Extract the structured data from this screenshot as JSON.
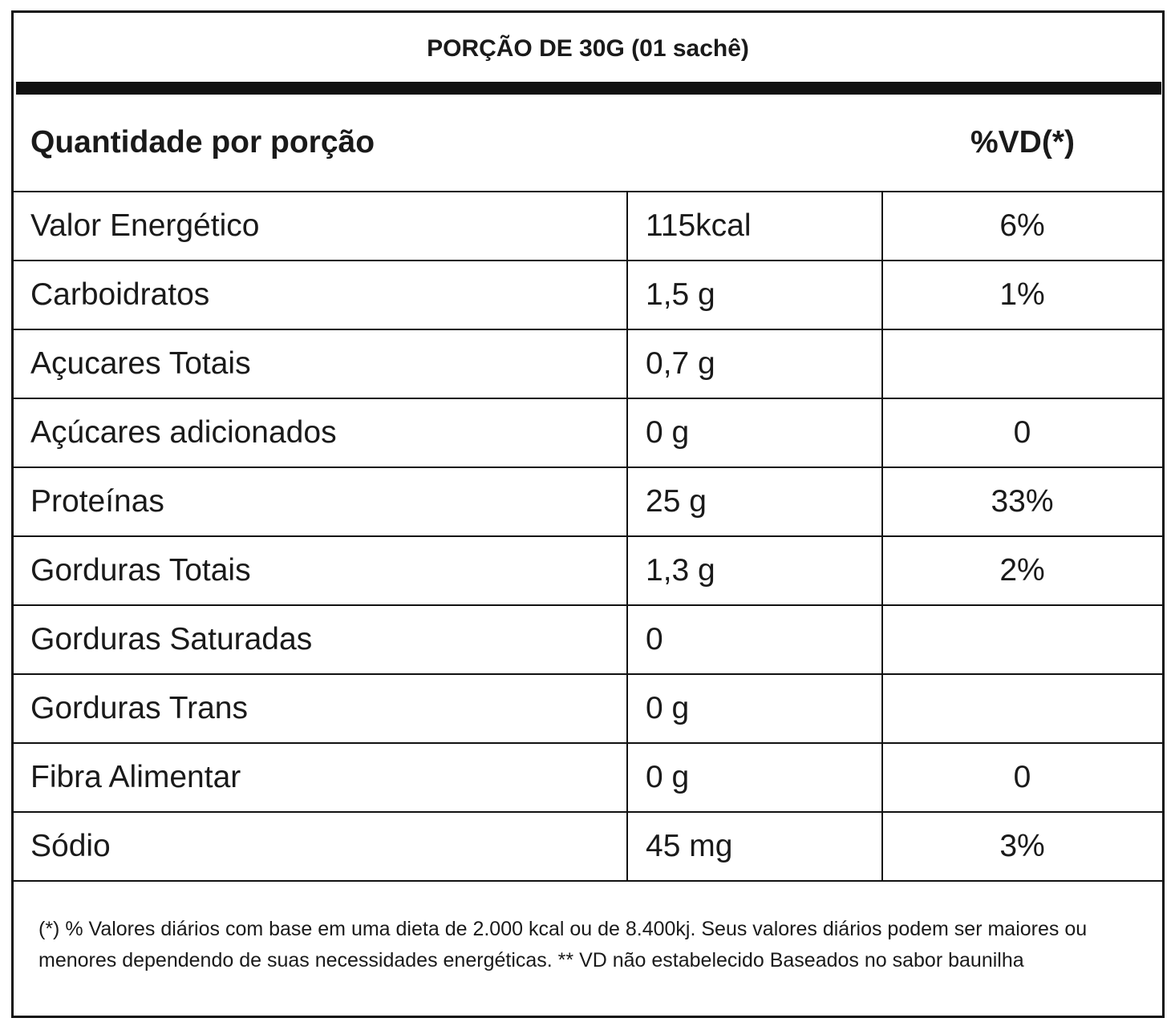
{
  "serving": "PORÇÃO DE 30G (01 sachê)",
  "header": {
    "left": "Quantidade por porção",
    "right": "%VD(*)"
  },
  "rows": [
    {
      "name": "Valor Energético",
      "amount": "115kcal",
      "vd": "6%"
    },
    {
      "name": "Carboidratos",
      "amount": "1,5 g",
      "vd": "1%"
    },
    {
      "name": "Açucares Totais",
      "amount": "0,7 g",
      "vd": ""
    },
    {
      "name": "Açúcares adicionados",
      "amount": "0 g",
      "vd": "0"
    },
    {
      "name": "Proteínas",
      "amount": "25 g",
      "vd": "33%"
    },
    {
      "name": "Gorduras Totais",
      "amount": "1,3 g",
      "vd": "2%"
    },
    {
      "name": "Gorduras Saturadas",
      "amount": "0",
      "vd": ""
    },
    {
      "name": "Gorduras Trans",
      "amount": "0 g",
      "vd": ""
    },
    {
      "name": "Fibra Alimentar",
      "amount": "0 g",
      "vd": "0"
    },
    {
      "name": "Sódio",
      "amount": "45 mg",
      "vd": "3%"
    }
  ],
  "footnote": "(*) % Valores diários com base em uma dieta de 2.000 kcal ou de 8.400kj. Seus valores diários podem ser maiores ou menores dependendo de suas necessidades energéticas. ** VD não estabelecido Baseados no sabor baunilha"
}
